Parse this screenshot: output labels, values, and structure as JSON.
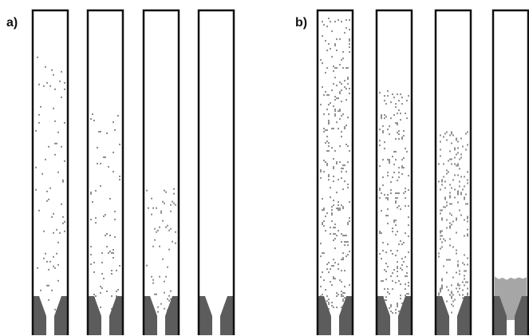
{
  "panels": [
    {
      "label": "a)",
      "tubes": [
        {
          "fill_top_fraction": 0.14,
          "density": 0.1,
          "settled_fraction": 0.0
        },
        {
          "fill_top_fraction": 0.34,
          "density": 0.11,
          "settled_fraction": 0.0
        },
        {
          "fill_top_fraction": 0.62,
          "density": 0.12,
          "settled_fraction": 0.0
        },
        {
          "fill_top_fraction": 0.0,
          "density": 0.0,
          "settled_fraction": 0.0
        }
      ]
    },
    {
      "label": "b)",
      "tubes": [
        {
          "fill_top_fraction": 0.02,
          "density": 0.3,
          "settled_fraction": 0.0
        },
        {
          "fill_top_fraction": 0.27,
          "density": 0.36,
          "settled_fraction": 0.0
        },
        {
          "fill_top_fraction": 0.42,
          "density": 0.42,
          "settled_fraction": 0.0
        },
        {
          "fill_top_fraction": 0.0,
          "density": 0.0,
          "settled_fraction": 0.07
        }
      ]
    }
  ],
  "colors": {
    "outline": "#111111",
    "particle": "#8c8c8c",
    "hopper": "#5c5c5c",
    "settled": "#a6a6a6"
  }
}
